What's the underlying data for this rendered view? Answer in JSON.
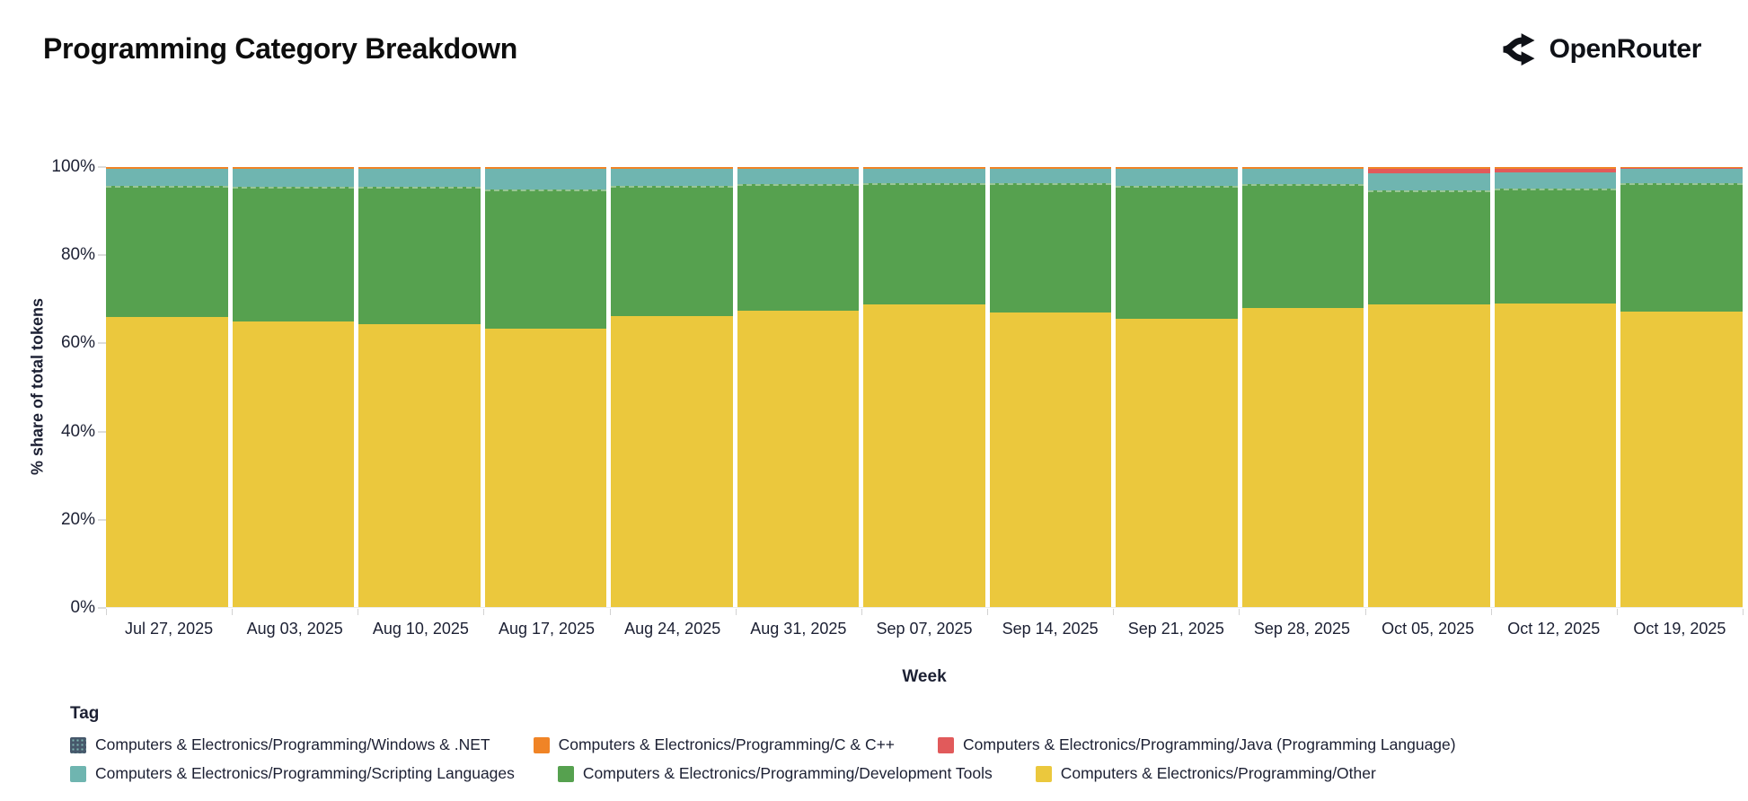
{
  "header": {
    "title": "Programming Category Breakdown",
    "logo_text": "OpenRouter"
  },
  "chart_data": {
    "type": "bar",
    "subtype": "stacked-percentage",
    "title": "Programming Category Breakdown",
    "xlabel": "Week",
    "ylabel": "% share of total tokens",
    "ylim": [
      0,
      100
    ],
    "yticks": [
      "0%",
      "20%",
      "40%",
      "60%",
      "80%",
      "100%"
    ],
    "grid": false,
    "legend_title": "Tag",
    "legend_position": "bottom",
    "stack_order": "bottom-to-top",
    "categories": [
      "Jul 27, 2025",
      "Aug 03, 2025",
      "Aug 10, 2025",
      "Aug 17, 2025",
      "Aug 24, 2025",
      "Aug 31, 2025",
      "Sep 07, 2025",
      "Sep 14, 2025",
      "Sep 21, 2025",
      "Sep 28, 2025",
      "Oct 05, 2025",
      "Oct 12, 2025",
      "Oct 19, 2025"
    ],
    "series": [
      {
        "key": "other",
        "name": "Computers & Electronics/Programming/Other",
        "color": "#ebc83d",
        "values": [
          65.9,
          64.8,
          64.3,
          63.2,
          66.1,
          67.3,
          68.8,
          67.0,
          65.5,
          68.0,
          68.8,
          69.0,
          67.1
        ]
      },
      {
        "key": "devtools",
        "name": "Computers & Electronics/Programming/Development Tools",
        "color": "#56a14f",
        "values": [
          29.8,
          30.8,
          31.2,
          31.7,
          29.6,
          28.9,
          27.6,
          29.4,
          30.2,
          28.1,
          25.9,
          26.1,
          29.2
        ]
      },
      {
        "key": "scripting",
        "name": "Computers & Electronics/Programming/Scripting Languages",
        "color": "#6fb5b0",
        "values": [
          3.8,
          3.9,
          4.0,
          4.6,
          3.8,
          3.3,
          3.1,
          3.1,
          3.8,
          3.4,
          3.9,
          3.6,
          3.3
        ]
      },
      {
        "key": "java",
        "name": "Computers & Electronics/Programming/Java (Programming Language)",
        "color": "#e15a5b",
        "values": [
          0.1,
          0.1,
          0.1,
          0.1,
          0.1,
          0.1,
          0.1,
          0.1,
          0.1,
          0.1,
          1.0,
          0.9,
          0.1
        ]
      },
      {
        "key": "c_cpp",
        "name": "Computers & Electronics/Programming/C & C++",
        "color": "#f08426",
        "values": [
          0.3,
          0.3,
          0.3,
          0.3,
          0.3,
          0.3,
          0.3,
          0.3,
          0.3,
          0.3,
          0.3,
          0.3,
          0.2
        ]
      },
      {
        "key": "windows_net",
        "name": "Computers & Electronics/Programming/Windows & .NET",
        "color": "#46586b",
        "pattern": "dots",
        "values": [
          0.1,
          0.1,
          0.1,
          0.1,
          0.1,
          0.1,
          0.1,
          0.1,
          0.1,
          0.1,
          0.1,
          0.1,
          0.1
        ]
      }
    ]
  },
  "legend": {
    "title": "Tag",
    "items": [
      {
        "key": "windows_net",
        "label": "Computers & Electronics/Programming/Windows & .NET",
        "color": "#46586b",
        "pattern": "dots"
      },
      {
        "key": "c_cpp",
        "label": "Computers & Electronics/Programming/C & C++",
        "color": "#f08426",
        "pattern": "solid"
      },
      {
        "key": "java",
        "label": "Computers & Electronics/Programming/Java (Programming Language)",
        "color": "#e15a5b",
        "pattern": "solid"
      },
      {
        "key": "scripting",
        "label": "Computers & Electronics/Programming/Scripting Languages",
        "color": "#6fb5b0",
        "pattern": "solid"
      },
      {
        "key": "devtools",
        "label": "Computers & Electronics/Programming/Development Tools",
        "color": "#56a14f",
        "pattern": "solid"
      },
      {
        "key": "other",
        "label": "Computers & Electronics/Programming/Other",
        "color": "#ebc83d",
        "pattern": "solid"
      }
    ]
  }
}
